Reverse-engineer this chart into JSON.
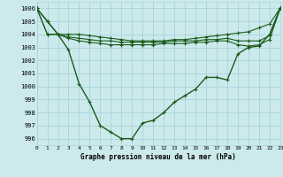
{
  "title": "Graphe pression niveau de la mer (hPa)",
  "background_color": "#cce9ec",
  "grid_color": "#a8d5d8",
  "line_color": "#1a5c1a",
  "xlim": [
    0,
    23
  ],
  "ylim": [
    995.5,
    1006.5
  ],
  "yticks": [
    996,
    997,
    998,
    999,
    1000,
    1001,
    1002,
    1003,
    1004,
    1005,
    1006
  ],
  "xticks": [
    0,
    1,
    2,
    3,
    4,
    5,
    6,
    7,
    8,
    9,
    10,
    11,
    12,
    13,
    14,
    15,
    16,
    17,
    18,
    19,
    20,
    21,
    22,
    23
  ],
  "series": {
    "line_top": [
      1006.0,
      1005.0,
      1004.0,
      1004.0,
      1004.0,
      1003.9,
      1003.8,
      1003.7,
      1003.6,
      1003.5,
      1003.5,
      1003.5,
      1003.5,
      1003.6,
      1003.6,
      1003.7,
      1003.8,
      1003.9,
      1004.0,
      1004.1,
      1004.2,
      1004.5,
      1004.8,
      1006.0
    ],
    "line_mid1": [
      1006.0,
      1004.0,
      1004.0,
      1003.8,
      1003.7,
      1003.6,
      1003.5,
      1003.5,
      1003.4,
      1003.4,
      1003.4,
      1003.4,
      1003.4,
      1003.5,
      1003.5,
      1003.5,
      1003.6,
      1003.6,
      1003.7,
      1003.5,
      1003.5,
      1003.5,
      1003.9,
      1006.0
    ],
    "line_mid2": [
      1006.0,
      1004.0,
      1004.0,
      1003.7,
      1003.5,
      1003.4,
      1003.3,
      1003.2,
      1003.2,
      1003.2,
      1003.2,
      1003.2,
      1003.3,
      1003.3,
      1003.3,
      1003.4,
      1003.4,
      1003.5,
      1003.5,
      1003.2,
      1003.1,
      1003.2,
      1003.6,
      1006.0
    ],
    "line_main": [
      1006.0,
      1005.0,
      1004.0,
      1002.8,
      1000.2,
      998.8,
      997.0,
      996.5,
      996.0,
      996.0,
      997.2,
      997.4,
      998.0,
      998.8,
      999.3,
      999.8,
      1000.7,
      1000.7,
      1000.5,
      1002.5,
      1003.0,
      1003.1,
      1004.0,
      1006.0
    ]
  }
}
